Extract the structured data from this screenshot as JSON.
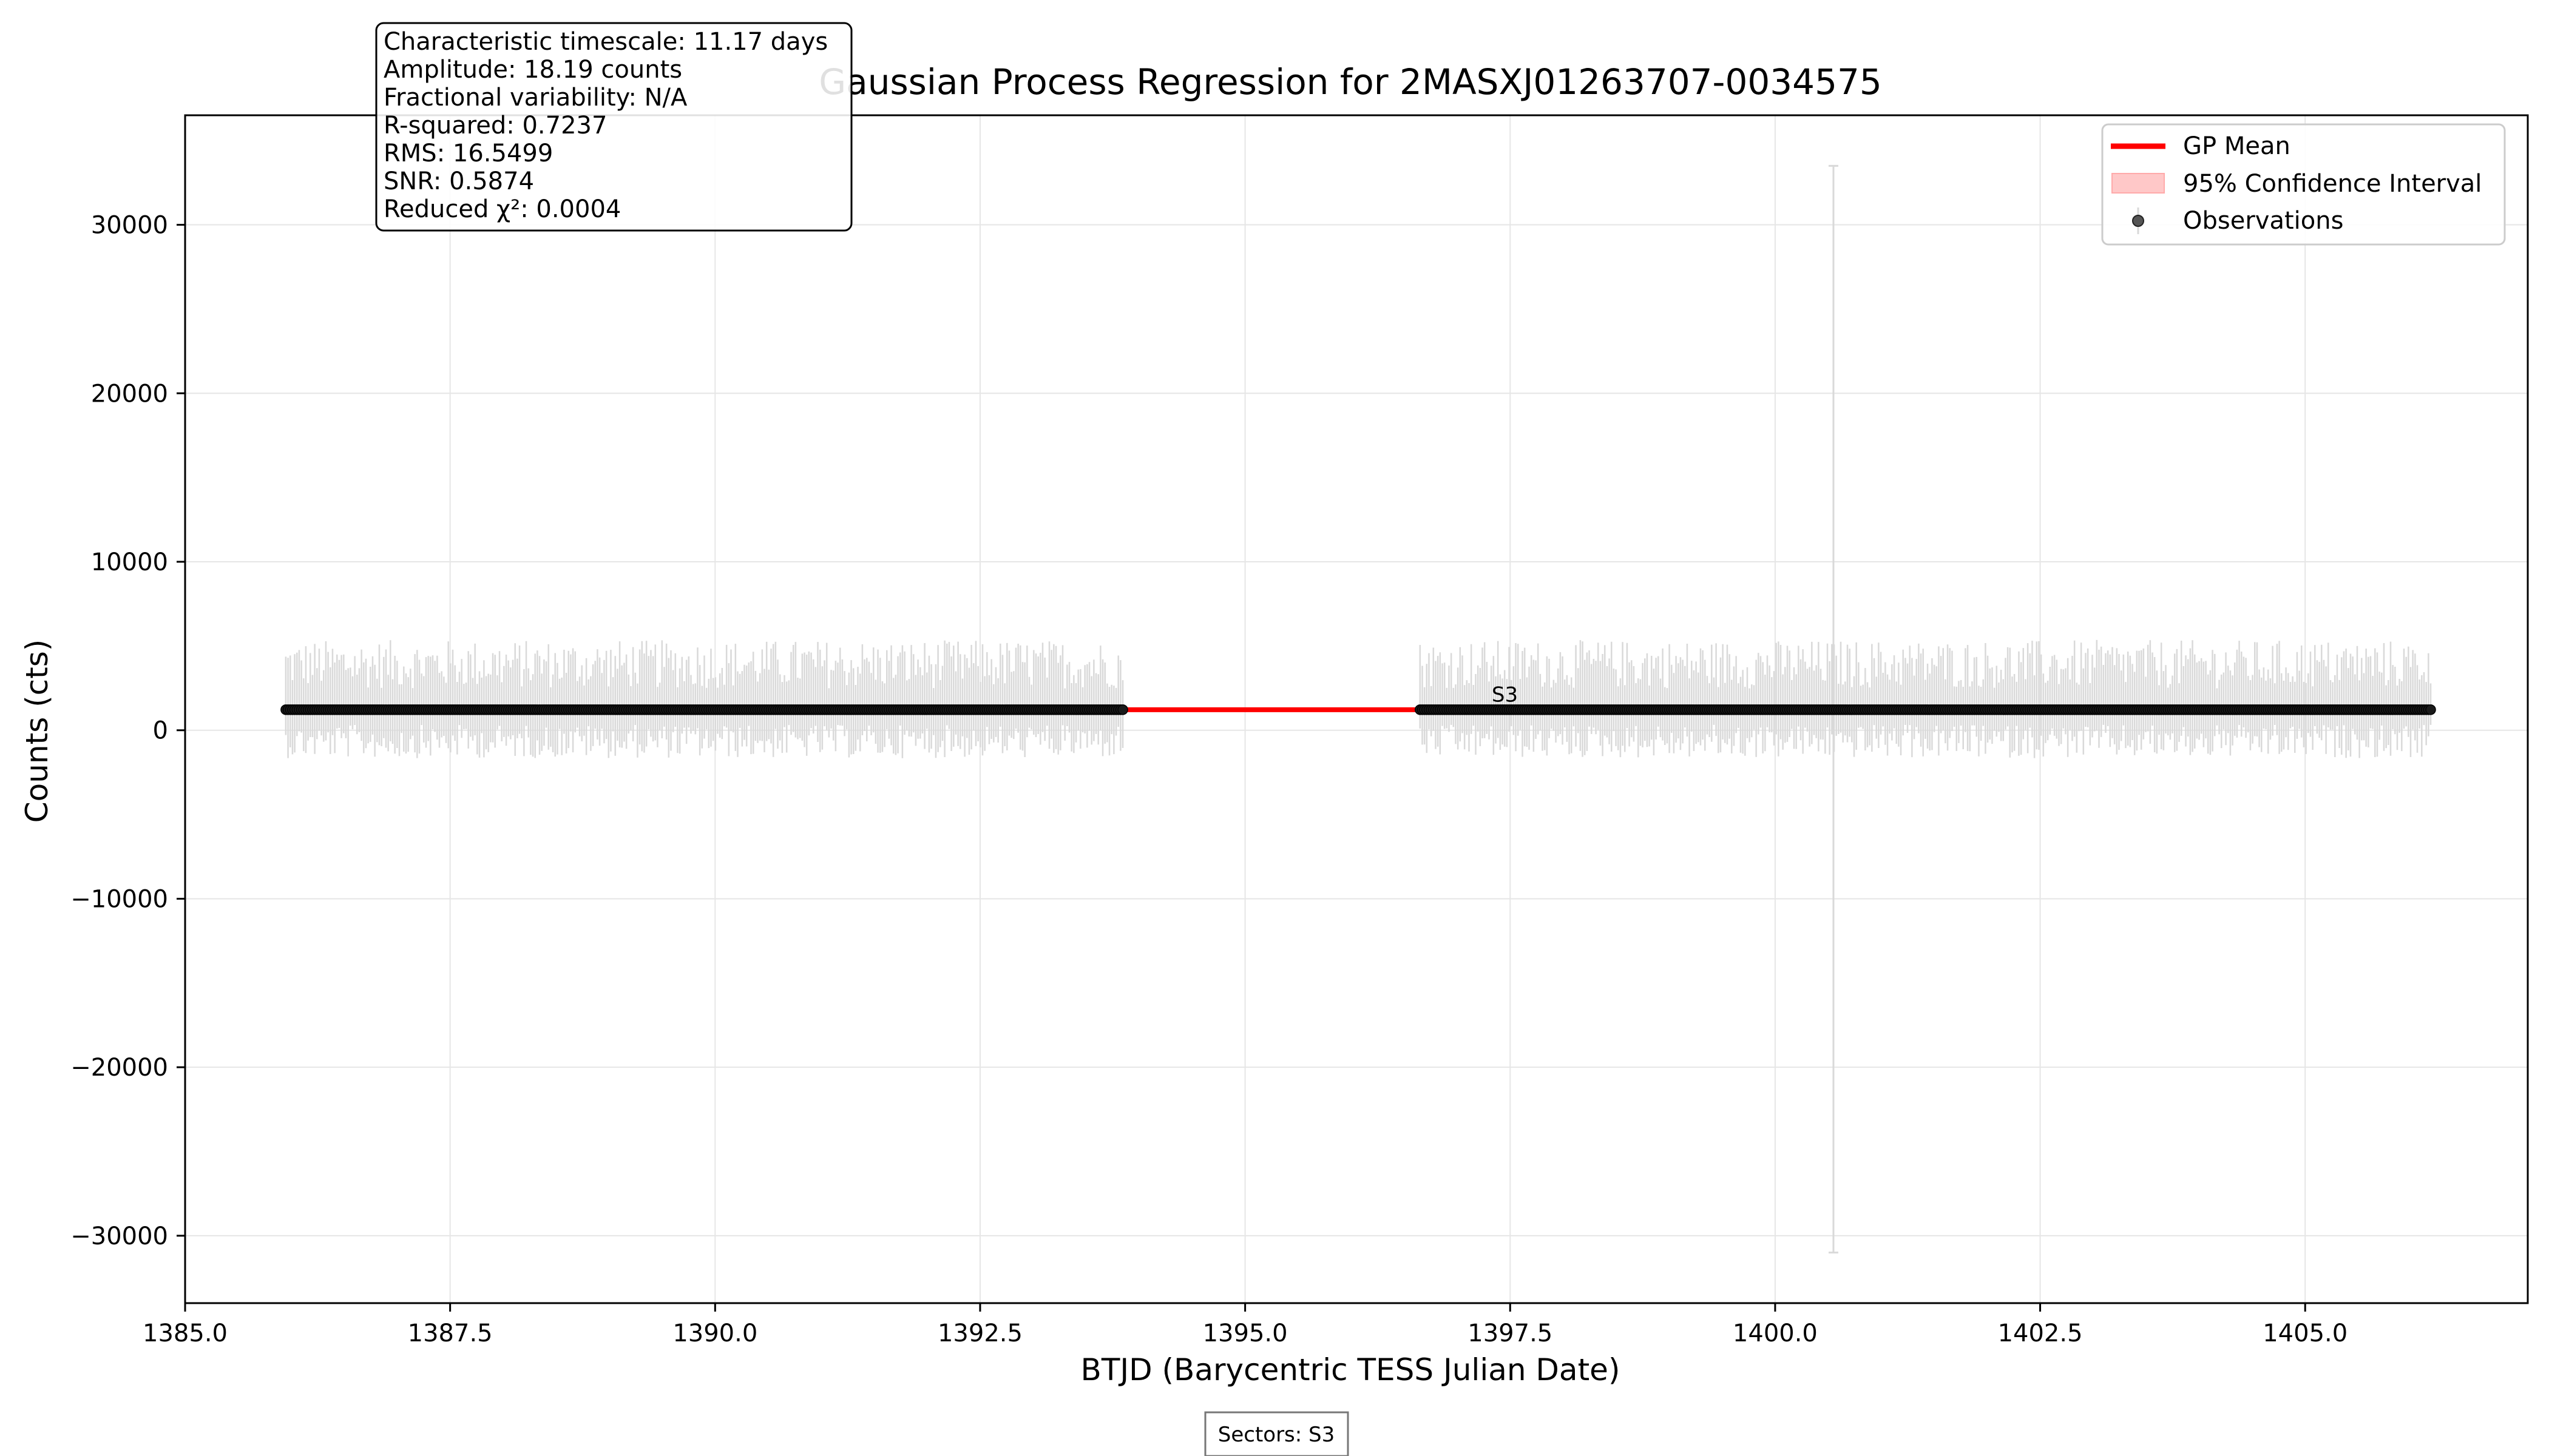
{
  "chart_data": {
    "type": "scatter",
    "title": "Gaussian Process Regression for 2MASXJ01263707-0034575",
    "xlabel": "BTJD (Barycentric TESS Julian Date)",
    "ylabel": "Counts (cts)",
    "xlim": [
      1385.0,
      1407.1
    ],
    "ylim": [
      -34000,
      36500
    ],
    "xticks": [
      1385.0,
      1387.5,
      1390.0,
      1392.5,
      1395.0,
      1397.5,
      1400.0,
      1402.5,
      1405.0
    ],
    "yticks": [
      -30000,
      -20000,
      -10000,
      0,
      10000,
      20000,
      30000
    ],
    "xtick_labels": [
      "1385.0",
      "1387.5",
      "1390.0",
      "1392.5",
      "1395.0",
      "1397.5",
      "1400.0",
      "1402.5",
      "1405.0"
    ],
    "ytick_labels": [
      "−30000",
      "−20000",
      "−10000",
      "0",
      "10000",
      "20000",
      "30000"
    ],
    "grid": true,
    "legend_position": "top-right",
    "legend": [
      "GP Mean",
      "95% Confidence Interval",
      "Observations"
    ],
    "colors": {
      "gp_mean": "#ff0000",
      "confidence": "#ffc8c8",
      "observations": "#000000",
      "errorbars": "#d9d9d9"
    },
    "gp_mean_level": 1220,
    "observation_segments": [
      {
        "start": 1385.95,
        "end": 1393.85,
        "level": 1220
      },
      {
        "start": 1396.65,
        "end": 1406.2,
        "level": 1220
      }
    ],
    "typical_error": 1800,
    "outlier_errorbars": [
      {
        "x": 1400.55,
        "low": -31000,
        "high": 33500
      }
    ],
    "annotation": "S3",
    "annotation_x": 1397.45,
    "annotation_y": 1700,
    "stats_box": [
      "Characteristic timescale: 11.17 days",
      "Amplitude: 18.19 counts",
      "Fractional variability: N/A",
      "R-squared: 0.7237",
      "RMS: 16.5499",
      "SNR: 0.5874",
      "Reduced χ²: 0.0004"
    ],
    "footer": "Sectors: S3"
  }
}
